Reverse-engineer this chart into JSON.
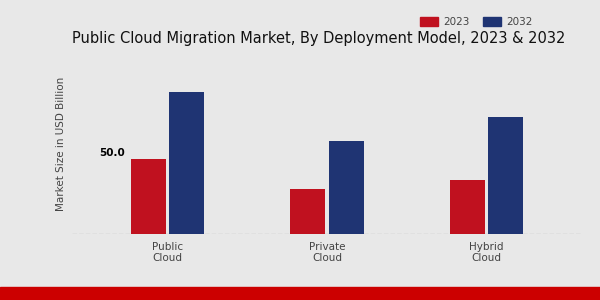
{
  "title": "Public Cloud Migration Market, By Deployment Model, 2023 & 2032",
  "ylabel": "Market Size in USD Billion",
  "categories": [
    "Public\nCloud",
    "Private\nCloud",
    "Hybrid\nCloud"
  ],
  "values_2023": [
    50.0,
    30.0,
    36.0
  ],
  "values_2032": [
    95.0,
    62.0,
    78.0
  ],
  "color_2023": "#c0111f",
  "color_2032": "#1f3473",
  "annotation_value": "50.0",
  "bar_width": 0.22,
  "background_color": "#e8e8e8",
  "legend_labels": [
    "2023",
    "2032"
  ],
  "title_fontsize": 10.5,
  "label_fontsize": 7.5,
  "tick_fontsize": 7.5,
  "ylim": [
    0,
    120
  ],
  "bottom_strip_color": "#cc0000",
  "dashed_line_color": "#aaaaaa"
}
